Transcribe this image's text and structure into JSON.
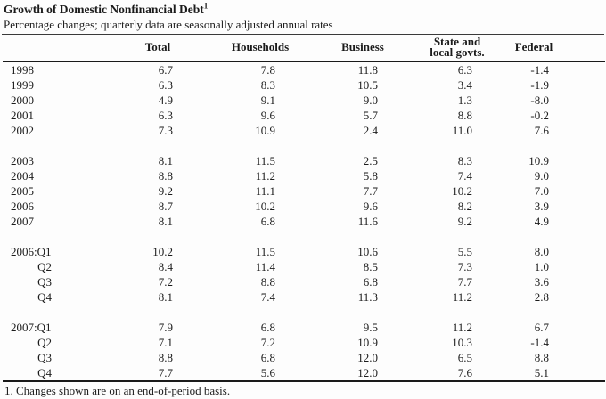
{
  "title": "Growth of Domestic Nonfinancial Debt",
  "title_note_marker": "1",
  "subtitle": "Percentage changes; quarterly data are seasonally adjusted annual rates",
  "footnote": "1. Changes shown are on an end-of-period basis.",
  "colors": {
    "background": "#fdfdfd",
    "text": "#1b1b1b",
    "rule": "#1a1a1a"
  },
  "table": {
    "columns": [
      {
        "id": "total",
        "lines": [
          "Total"
        ]
      },
      {
        "id": "households",
        "lines": [
          "Households"
        ]
      },
      {
        "id": "business",
        "lines": [
          "Business"
        ]
      },
      {
        "id": "state-local",
        "lines": [
          "State and",
          "local govts."
        ]
      },
      {
        "id": "federal",
        "lines": [
          "Federal"
        ]
      }
    ],
    "sections": [
      {
        "rows": [
          {
            "label": "1998",
            "values": [
              "6.7",
              "7.8",
              "11.8",
              "6.3",
              "-1.4"
            ]
          },
          {
            "label": "1999",
            "values": [
              "6.3",
              "8.3",
              "10.5",
              "3.4",
              "-1.9"
            ]
          },
          {
            "label": "2000",
            "values": [
              "4.9",
              "9.1",
              "9.0",
              "1.3",
              "-8.0"
            ]
          },
          {
            "label": "2001",
            "values": [
              "6.3",
              "9.6",
              "5.7",
              "8.8",
              "-0.2"
            ]
          },
          {
            "label": "2002",
            "values": [
              "7.3",
              "10.9",
              "2.4",
              "11.0",
              "7.6"
            ]
          }
        ]
      },
      {
        "rows": [
          {
            "label": "2003",
            "values": [
              "8.1",
              "11.5",
              "2.5",
              "8.3",
              "10.9"
            ]
          },
          {
            "label": "2004",
            "values": [
              "8.8",
              "11.2",
              "5.8",
              "7.4",
              "9.0"
            ]
          },
          {
            "label": "2005",
            "values": [
              "9.2",
              "11.1",
              "7.7",
              "10.2",
              "7.0"
            ]
          },
          {
            "label": "2006",
            "values": [
              "8.7",
              "10.2",
              "9.6",
              "8.2",
              "3.9"
            ]
          },
          {
            "label": "2007",
            "values": [
              "8.1",
              "6.8",
              "11.6",
              "9.2",
              "4.9"
            ]
          }
        ]
      },
      {
        "rows": [
          {
            "label": "2006:Q1",
            "values": [
              "10.2",
              "11.5",
              "10.6",
              "5.5",
              "8.0"
            ]
          },
          {
            "label": "Q2",
            "values": [
              "8.4",
              "11.4",
              "8.5",
              "7.3",
              "1.0"
            ]
          },
          {
            "label": "Q3",
            "values": [
              "7.2",
              "8.8",
              "6.8",
              "7.7",
              "3.6"
            ]
          },
          {
            "label": "Q4",
            "values": [
              "8.1",
              "7.4",
              "11.3",
              "11.2",
              "2.8"
            ]
          }
        ]
      },
      {
        "rows": [
          {
            "label": "2007:Q1",
            "values": [
              "7.9",
              "6.8",
              "9.5",
              "11.2",
              "6.7"
            ]
          },
          {
            "label": "Q2",
            "values": [
              "7.1",
              "7.2",
              "10.9",
              "10.3",
              "-1.4"
            ]
          },
          {
            "label": "Q3",
            "values": [
              "8.8",
              "6.8",
              "12.0",
              "6.5",
              "8.8"
            ]
          },
          {
            "label": "Q4",
            "values": [
              "7.7",
              "5.6",
              "12.0",
              "7.6",
              "5.1"
            ]
          }
        ]
      }
    ]
  }
}
